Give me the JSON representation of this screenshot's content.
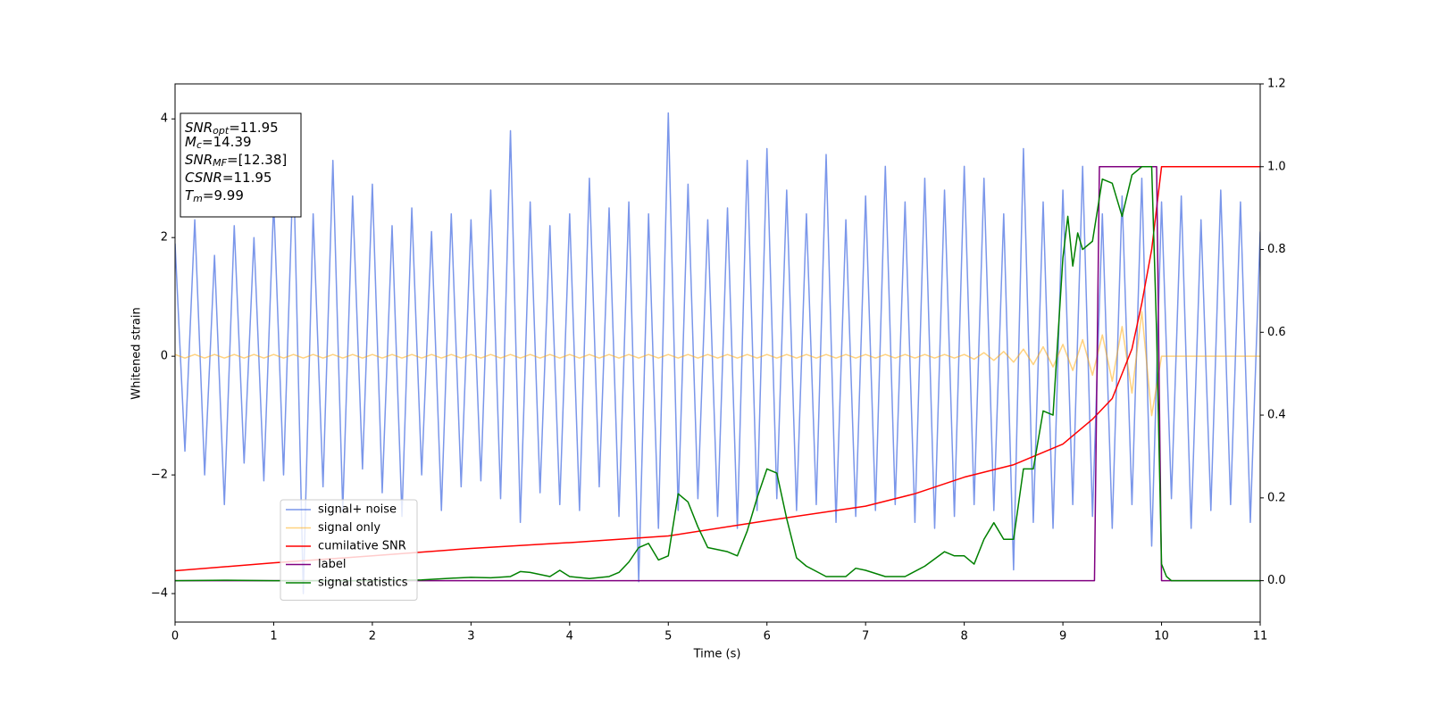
{
  "chart_data": {
    "type": "line",
    "xlabel": "Time (s)",
    "ylabel": "Whitened strain",
    "xlim": [
      0,
      11
    ],
    "xticks": [
      0,
      1,
      2,
      3,
      4,
      5,
      6,
      7,
      8,
      9,
      10,
      11
    ],
    "ylim": [
      -4.48,
      4.59
    ],
    "yticks": [
      {
        "value": -4,
        "label": "−4"
      },
      {
        "value": -2,
        "label": "−2"
      },
      0,
      2,
      4
    ],
    "y2lim": [
      -0.1,
      1.2
    ],
    "y2ticks": [
      {
        "value": 0,
        "label": "0.0"
      },
      {
        "value": 0.2,
        "label": "0.2"
      },
      {
        "value": 0.4,
        "label": "0.4"
      },
      {
        "value": 0.6,
        "label": "0.6"
      },
      {
        "value": 0.8,
        "label": "0.8"
      },
      {
        "value": 1.0,
        "label": "1.0"
      },
      {
        "value": 1.2,
        "label": "1.2"
      }
    ],
    "legend": "lower left",
    "annotations": [
      {
        "symbol": "SNR",
        "sub": "opt",
        "text": "=11.95"
      },
      {
        "symbol": "M",
        "sub": "c",
        "text": "=14.39"
      },
      {
        "symbol": "SNR",
        "sub": "MF",
        "text": "=[12.38]"
      },
      {
        "symbol": "CSNR",
        "sub": "",
        "text": "=11.95"
      },
      {
        "symbol": "T",
        "sub": "m",
        "text": "=9.99"
      }
    ],
    "x": [
      0,
      0.1,
      0.2,
      0.3,
      0.4,
      0.5,
      0.6,
      0.7,
      0.8,
      0.9,
      1,
      1.1,
      1.2,
      1.3,
      1.4,
      1.5,
      1.6,
      1.7,
      1.8,
      1.9,
      2,
      2.1,
      2.2,
      2.3,
      2.4,
      2.5,
      2.6,
      2.7,
      2.8,
      2.9,
      3,
      3.1,
      3.2,
      3.3,
      3.4,
      3.5,
      3.6,
      3.7,
      3.8,
      3.9,
      4,
      4.1,
      4.2,
      4.3,
      4.4,
      4.5,
      4.6,
      4.7,
      4.8,
      4.9,
      5,
      5.1,
      5.2,
      5.3,
      5.4,
      5.5,
      5.6,
      5.7,
      5.8,
      5.9,
      6,
      6.1,
      6.2,
      6.3,
      6.4,
      6.5,
      6.6,
      6.7,
      6.8,
      6.9,
      7,
      7.1,
      7.2,
      7.3,
      7.4,
      7.5,
      7.6,
      7.7,
      7.8,
      7.9,
      8,
      8.1,
      8.2,
      8.3,
      8.4,
      8.5,
      8.6,
      8.7,
      8.8,
      8.9,
      9,
      9.1,
      9.2,
      9.3,
      9.4,
      9.5,
      9.6,
      9.7,
      9.8,
      9.9,
      10,
      10.1,
      10.2,
      10.3,
      10.4,
      10.5,
      10.6,
      10.7,
      10.8,
      10.9,
      11
    ],
    "series": [
      {
        "name": "signal+ noise",
        "color": "#4169e1",
        "opacity": 0.7,
        "axis": "y",
        "values": [
          1.9,
          -1.6,
          2.3,
          -2.0,
          1.7,
          -2.5,
          2.2,
          -1.8,
          2.0,
          -2.1,
          2.6,
          -2.0,
          3.3,
          -4.0,
          2.4,
          -2.2,
          3.3,
          -2.6,
          2.7,
          -1.9,
          2.9,
          -2.3,
          2.2,
          -2.7,
          2.5,
          -2.0,
          2.1,
          -2.6,
          2.4,
          -2.2,
          2.3,
          -2.1,
          2.8,
          -2.4,
          3.8,
          -2.8,
          2.6,
          -2.3,
          2.2,
          -2.5,
          2.4,
          -2.6,
          3.0,
          -2.2,
          2.5,
          -2.7,
          2.6,
          -3.8,
          2.4,
          -2.9,
          4.1,
          -2.6,
          2.9,
          -2.4,
          2.3,
          -2.7,
          2.5,
          -2.9,
          3.3,
          -2.6,
          3.5,
          -2.4,
          2.8,
          -2.6,
          2.4,
          -2.5,
          3.4,
          -2.8,
          2.3,
          -2.7,
          2.7,
          -2.6,
          3.2,
          -2.5,
          2.6,
          -2.8,
          3.0,
          -2.9,
          2.8,
          -2.7,
          3.2,
          -2.5,
          3.0,
          -2.6,
          2.4,
          -3.6,
          3.5,
          -2.8,
          2.6,
          -2.9,
          2.8,
          -2.5,
          3.2,
          -2.7,
          2.4,
          -2.9,
          2.7,
          -2.5,
          3.0,
          -3.2,
          2.6,
          -2.4,
          2.7,
          -2.9,
          2.3,
          -2.6,
          2.8,
          -2.5,
          2.6,
          -2.8,
          2.1
        ]
      },
      {
        "name": "signal only",
        "color": "orange",
        "opacity": 0.5,
        "axis": "y",
        "values": [
          0.03,
          -0.03,
          0.03,
          -0.03,
          0.03,
          -0.03,
          0.03,
          -0.03,
          0.03,
          -0.03,
          0.03,
          -0.03,
          0.03,
          -0.03,
          0.03,
          -0.03,
          0.03,
          -0.03,
          0.03,
          -0.03,
          0.03,
          -0.03,
          0.03,
          -0.03,
          0.03,
          -0.03,
          0.03,
          -0.03,
          0.03,
          -0.03,
          0.03,
          -0.03,
          0.03,
          -0.03,
          0.03,
          -0.03,
          0.03,
          -0.03,
          0.03,
          -0.03,
          0.03,
          -0.03,
          0.03,
          -0.03,
          0.03,
          -0.03,
          0.03,
          -0.03,
          0.03,
          -0.03,
          0.03,
          -0.03,
          0.03,
          -0.03,
          0.03,
          -0.03,
          0.03,
          -0.03,
          0.03,
          -0.03,
          0.03,
          -0.03,
          0.03,
          -0.03,
          0.03,
          -0.03,
          0.03,
          -0.03,
          0.03,
          -0.03,
          0.03,
          -0.03,
          0.03,
          -0.03,
          0.03,
          -0.03,
          0.03,
          -0.03,
          0.03,
          -0.03,
          0.03,
          -0.05,
          0.06,
          -0.07,
          0.08,
          -0.1,
          0.12,
          -0.14,
          0.16,
          -0.18,
          0.2,
          -0.24,
          0.28,
          -0.32,
          0.36,
          -0.42,
          0.5,
          -0.62,
          0.75,
          -1.0,
          0,
          0,
          0,
          0,
          0,
          0,
          0,
          0,
          0,
          0,
          0
        ]
      },
      {
        "name": "cumilative SNR",
        "color": "red",
        "opacity": 1,
        "axis": "y2",
        "x": [
          0,
          1,
          2,
          3,
          4,
          5,
          6,
          7,
          7.5,
          8,
          8.5,
          9,
          9.3,
          9.5,
          9.7,
          9.8,
          9.9,
          9.95,
          10,
          10.01,
          11
        ],
        "values": [
          0.024,
          0.043,
          0.06,
          0.078,
          0.092,
          0.108,
          0.145,
          0.18,
          0.21,
          0.25,
          0.28,
          0.33,
          0.39,
          0.44,
          0.56,
          0.67,
          0.8,
          0.9,
          1.0,
          1.0,
          1.0
        ]
      },
      {
        "name": "label",
        "color": "purple",
        "opacity": 1,
        "axis": "y2",
        "x": [
          0,
          9.32,
          9.37,
          9.95,
          10.0,
          11
        ],
        "values": [
          0,
          0,
          1,
          1,
          0,
          0
        ]
      },
      {
        "name": "signal statistics",
        "color": "green",
        "opacity": 1,
        "axis": "y2",
        "x": [
          0,
          0.5,
          1,
          1.5,
          2,
          2.5,
          2.8,
          3,
          3.2,
          3.4,
          3.5,
          3.6,
          3.8,
          3.9,
          4,
          4.2,
          4.4,
          4.5,
          4.6,
          4.7,
          4.8,
          4.9,
          5,
          5.1,
          5.2,
          5.3,
          5.4,
          5.6,
          5.7,
          5.8,
          5.9,
          6,
          6.1,
          6.2,
          6.3,
          6.4,
          6.6,
          6.8,
          6.9,
          7,
          7.2,
          7.4,
          7.6,
          7.8,
          7.9,
          8,
          8.1,
          8.2,
          8.3,
          8.4,
          8.5,
          8.6,
          8.7,
          8.8,
          8.9,
          9,
          9.05,
          9.1,
          9.15,
          9.2,
          9.3,
          9.4,
          9.5,
          9.6,
          9.7,
          9.8,
          9.85,
          9.9,
          9.95,
          10,
          10.05,
          10.1,
          11
        ],
        "values": [
          0,
          0.001,
          0,
          0,
          0,
          0.002,
          0.006,
          0.008,
          0.007,
          0.01,
          0.022,
          0.02,
          0.01,
          0.025,
          0.01,
          0.005,
          0.01,
          0.02,
          0.045,
          0.08,
          0.09,
          0.05,
          0.06,
          0.21,
          0.19,
          0.13,
          0.08,
          0.07,
          0.06,
          0.12,
          0.2,
          0.27,
          0.26,
          0.15,
          0.055,
          0.035,
          0.01,
          0.01,
          0.03,
          0.025,
          0.01,
          0.01,
          0.035,
          0.07,
          0.06,
          0.06,
          0.04,
          0.1,
          0.14,
          0.1,
          0.1,
          0.27,
          0.27,
          0.41,
          0.4,
          0.78,
          0.88,
          0.76,
          0.84,
          0.8,
          0.82,
          0.97,
          0.96,
          0.88,
          0.98,
          1.0,
          1.0,
          1.0,
          0.6,
          0.04,
          0.01,
          0,
          0
        ]
      }
    ]
  }
}
